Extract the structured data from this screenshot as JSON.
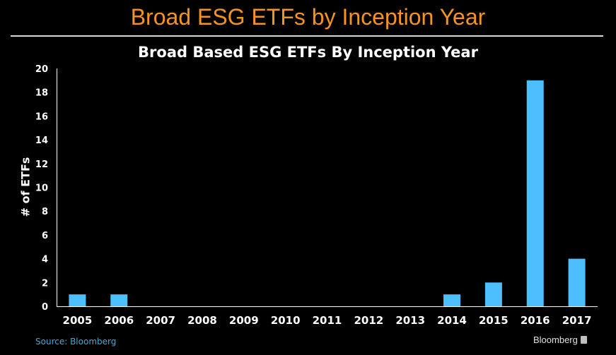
{
  "header": {
    "title": "Broad ESG ETFs by Inception Year"
  },
  "footer": {
    "source": "Source: Bloomberg",
    "brand": "Bloomberg",
    "brand_icon": "bloomberg-logo-icon"
  },
  "colors": {
    "accent": "#f7931e",
    "bar": "#4dbfff",
    "background": "#000000"
  },
  "chart_data": {
    "type": "bar",
    "title": "Broad Based ESG ETFs By Inception Year",
    "xlabel": "",
    "ylabel": "# of ETFs",
    "categories": [
      "2005",
      "2006",
      "2007",
      "2008",
      "2009",
      "2010",
      "2011",
      "2012",
      "2013",
      "2014",
      "2015",
      "2016",
      "2017"
    ],
    "values": [
      1,
      1,
      0,
      0,
      0,
      0,
      0,
      0,
      0,
      1,
      2,
      19,
      4
    ],
    "ylim": [
      0,
      20
    ],
    "yticks": [
      0,
      2,
      4,
      6,
      8,
      10,
      12,
      14,
      16,
      18,
      20
    ],
    "grid": false,
    "legend": "none"
  }
}
